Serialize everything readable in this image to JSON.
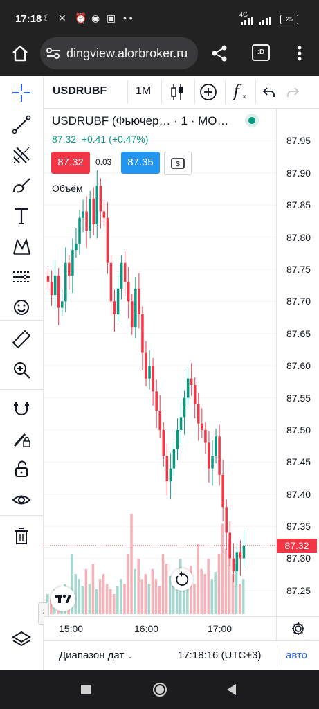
{
  "status_bar": {
    "time": "17:18",
    "network": "4G",
    "battery": "25"
  },
  "browser": {
    "url": "dingview.alorbroker.ru",
    "tabs_label": ":D"
  },
  "toolbar": {
    "symbol": "USDRUBF",
    "interval": "1M",
    "function_label": "f"
  },
  "legend": {
    "title": "USDRUBF (Фьючер… · 1 · MO…",
    "price": "87.32",
    "change": "+0.41",
    "change_pct": "(+0.47%)",
    "sell_price": "87.32",
    "spread": "0.03",
    "buy_price": "87.35",
    "volume_label": "Объём"
  },
  "price_axis": {
    "labels": [
      "87.95",
      "87.90",
      "87.85",
      "87.80",
      "87.75",
      "87.70",
      "87.65",
      "87.60",
      "87.55",
      "87.50",
      "87.45",
      "87.40",
      "87.35",
      "87.30",
      "87.25"
    ],
    "current_price": "87.32"
  },
  "time_axis": {
    "labels": [
      "15:00",
      "16:00",
      "17:00"
    ]
  },
  "bottom_bar": {
    "date_range": "Диапазон дат",
    "clock": "17:18:16 (UTC+3)",
    "auto": "авто"
  },
  "colors": {
    "up": "#089981",
    "down": "#f23645",
    "accent": "#2962ff"
  },
  "chart_data": {
    "type": "candlestick",
    "ylim": [
      87.21,
      88.0
    ],
    "price_close_series": [
      87.73,
      87.71,
      87.74,
      87.69,
      87.7,
      87.76,
      87.74,
      87.78,
      87.79,
      87.83,
      87.84,
      87.81,
      87.86,
      87.82,
      87.88,
      87.84,
      87.83,
      87.76,
      87.7,
      87.68,
      87.72,
      87.76,
      87.73,
      87.7,
      87.66,
      87.72,
      87.68,
      87.62,
      87.58,
      87.6,
      87.56,
      87.53,
      87.5,
      87.46,
      87.42,
      87.44,
      87.47,
      87.5,
      87.52,
      87.55,
      87.58,
      87.57,
      87.54,
      87.51,
      87.5,
      87.48,
      87.44,
      87.46,
      87.49,
      87.43,
      87.38,
      87.34,
      87.3,
      87.28,
      87.31,
      87.3,
      87.32
    ],
    "volume_series": [
      20,
      15,
      25,
      18,
      12,
      30,
      22,
      60,
      40,
      35,
      28,
      45,
      30,
      50,
      25,
      35,
      40,
      30,
      25,
      20,
      28,
      35,
      30,
      60,
      100,
      45,
      55,
      35,
      40,
      30,
      45,
      35,
      28,
      60,
      50,
      38,
      30,
      42,
      55,
      40,
      35,
      48,
      30,
      70,
      45,
      40,
      55,
      35,
      42,
      60,
      90,
      65,
      75,
      40,
      50,
      30,
      35
    ]
  }
}
